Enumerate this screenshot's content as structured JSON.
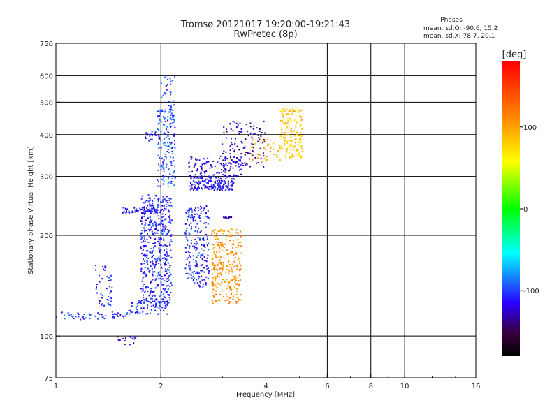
{
  "chart_data": {
    "type": "scatter",
    "title": "Tromsø 20121017 19:20:00-19:21:43",
    "subtitle": "RwPretec (8p)",
    "stats": {
      "heading": "Phases",
      "line1": "mean, sd,O: -90.6, 15.2",
      "line2": "mean, sd,X:  78.7, 20.1"
    },
    "xlabel": "Frequency [MHz]",
    "ylabel": "Stationary phase Virtual Height [km]",
    "x_scale": "log",
    "y_scale": "log",
    "xlim": [
      1,
      16
    ],
    "ylim": [
      75,
      750
    ],
    "x_ticks": [
      1,
      2,
      4,
      6,
      8,
      10,
      16
    ],
    "x_gridlines": [
      2,
      4,
      6,
      8,
      10
    ],
    "y_ticks": [
      75,
      100,
      200,
      300,
      400,
      500,
      600,
      750
    ],
    "y_gridlines": [
      100,
      200,
      300,
      400,
      500,
      600
    ],
    "grid": true,
    "colorbar": {
      "label": "[deg]",
      "range": [
        -180,
        180
      ],
      "ticks": [
        100,
        0,
        -100
      ],
      "colormap": "rainbow"
    },
    "series": [
      {
        "clusters": [
          {
            "x": [
              1.0,
              1.6
            ],
            "y": [
              112,
              118
            ],
            "phase": -105,
            "count": 55
          },
          {
            "x": [
              1.6,
              2.1
            ],
            "y": [
              116,
              128
            ],
            "phase": -108,
            "count": 70
          },
          {
            "x": [
              1.75,
              2.15
            ],
            "y": [
              125,
              265
            ],
            "phase": -108,
            "count": 500
          },
          {
            "x": [
              1.55,
              2.0
            ],
            "y": [
              232,
              242
            ],
            "phase": -112,
            "count": 70
          },
          {
            "x": [
              1.95,
              2.2
            ],
            "y": [
              280,
              480
            ],
            "phase": -98,
            "count": 170
          },
          {
            "x": [
              2.0,
              2.2
            ],
            "y": [
              480,
              610
            ],
            "phase": -102,
            "count": 25
          },
          {
            "x": [
              2.35,
              2.75
            ],
            "y": [
              140,
              245
            ],
            "phase": -108,
            "count": 220
          },
          {
            "x": [
              2.4,
              3.25
            ],
            "y": [
              272,
              300
            ],
            "phase": -112,
            "count": 180
          },
          {
            "x": [
              2.4,
              3.4
            ],
            "y": [
              300,
              345
            ],
            "phase": -120,
            "count": 120
          },
          {
            "x": [
              3.0,
              4.0
            ],
            "y": [
              320,
              440
            ],
            "phase": -130,
            "count": 110
          },
          {
            "x": [
              1.3,
              1.45
            ],
            "y": [
              122,
              165
            ],
            "phase": -110,
            "count": 45
          },
          {
            "x": [
              1.8,
              2.0
            ],
            "y": [
              380,
              410
            ],
            "phase": -118,
            "count": 25
          },
          {
            "x": [
              2.8,
              3.4
            ],
            "y": [
              125,
              210
            ],
            "phase": 108,
            "count": 260
          },
          {
            "x": [
              3.6,
              4.4
            ],
            "y": [
              330,
              390
            ],
            "phase": 100,
            "count": 35
          },
          {
            "x": [
              4.4,
              5.1
            ],
            "y": [
              340,
              480
            ],
            "phase": 82,
            "count": 160
          },
          {
            "x": [
              1.5,
              1.7
            ],
            "y": [
              94,
              100
            ],
            "phase": -128,
            "count": 15
          },
          {
            "x": [
              3.0,
              3.2
            ],
            "y": [
              225,
              228
            ],
            "phase": -130,
            "count": 15
          }
        ]
      }
    ]
  }
}
